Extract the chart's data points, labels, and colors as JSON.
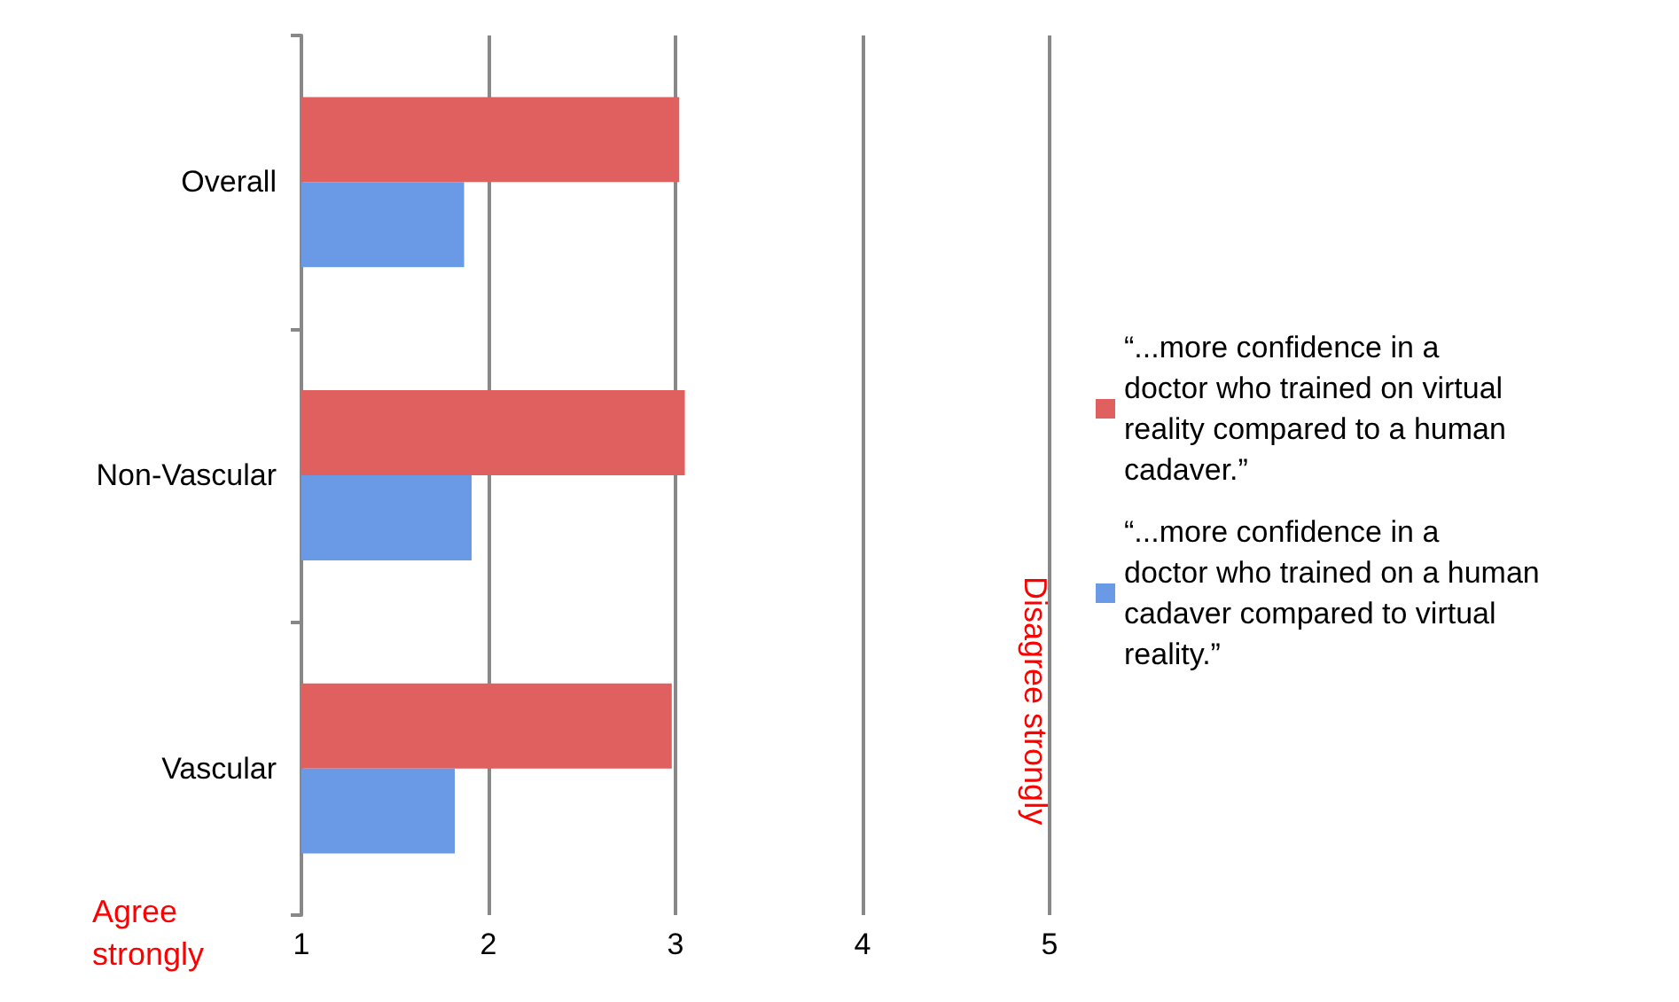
{
  "chart_data": {
    "type": "bar",
    "orientation": "horizontal",
    "categories": [
      "Overall",
      "Non-Vascular",
      "Vascular"
    ],
    "series": [
      {
        "name": "“...more confidence in a doctor who trained on virtual reality compared to a human cadaver.”",
        "color": "#e06060",
        "values": [
          3.02,
          3.05,
          2.98
        ]
      },
      {
        "name": "“...more confidence in a doctor who trained on a human cadaver compared to virtual reality.”",
        "color": "#6a9ae6",
        "values": [
          1.87,
          1.91,
          1.82
        ]
      }
    ],
    "xlim": [
      1,
      5
    ],
    "xticks": [
      1,
      2,
      3,
      4,
      5
    ],
    "grid": "x",
    "legend": "right",
    "annotations": [
      "Agree strongly",
      "Disagree strongly"
    ]
  }
}
